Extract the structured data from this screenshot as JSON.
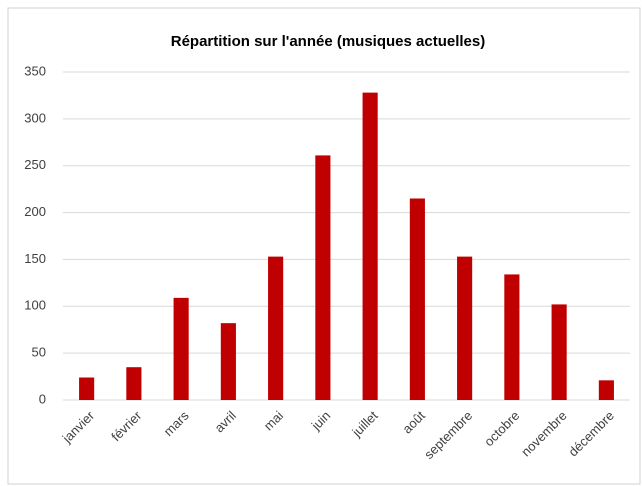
{
  "chart_data": {
    "type": "bar",
    "title": "Répartition sur l'année (musiques actuelles)",
    "categories": [
      "janvier",
      "février",
      "mars",
      "avril",
      "mai",
      "juin",
      "juillet",
      "août",
      "septembre",
      "octobre",
      "novembre",
      "décembre"
    ],
    "values": [
      24,
      35,
      109,
      82,
      153,
      261,
      328,
      215,
      153,
      134,
      102,
      21
    ],
    "color": "#c00000",
    "ylim": [
      0,
      350
    ],
    "yticks": [
      0,
      50,
      100,
      150,
      200,
      250,
      300,
      350
    ],
    "grid": true
  }
}
